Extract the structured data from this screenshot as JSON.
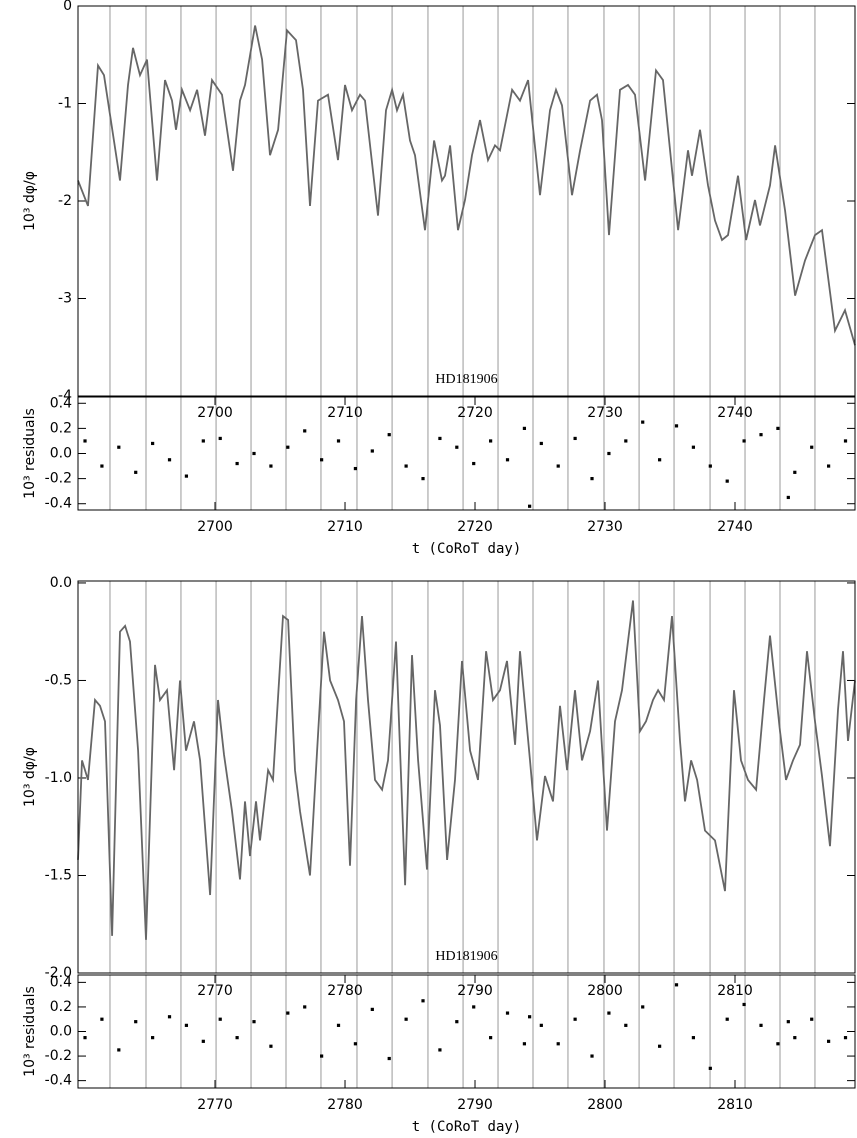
{
  "chart_data": [
    {
      "type": "line",
      "annotation": "HD181906",
      "ylabel": "10³ dφ/φ",
      "color": "#666666",
      "xlim": [
        2689.46,
        2749.23
      ],
      "ylim": [
        -4,
        0
      ],
      "yticks": [
        0,
        -1,
        -2,
        -3,
        -4
      ],
      "vlines": [
        2691.92,
        2694.69,
        2697.38,
        2700.08,
        2702.77,
        2705.46,
        2708.15,
        2710.92,
        2713.62,
        2716.38,
        2719.08,
        2721.77,
        2724.46,
        2727.15,
        2729.92,
        2732.62,
        2735.31,
        2738.08,
        2740.77,
        2743.46,
        2746.15
      ],
      "x": [
        2689.46,
        2690.23,
        2691.0,
        2691.46,
        2692.69,
        2693.31,
        2693.69,
        2694.23,
        2694.77,
        2695.54,
        2696.15,
        2696.69,
        2697.0,
        2697.46,
        2698.08,
        2698.62,
        2699.23,
        2699.77,
        2700.54,
        2701.38,
        2701.92,
        2702.31,
        2703.08,
        2703.62,
        2704.23,
        2704.85,
        2705.54,
        2706.23,
        2706.77,
        2707.31,
        2707.92,
        2708.69,
        2709.46,
        2710.0,
        2710.54,
        2711.15,
        2711.54,
        2712.54,
        2713.15,
        2713.62,
        2714.0,
        2714.46,
        2715.0,
        2715.38,
        2716.15,
        2716.85,
        2717.46,
        2717.69,
        2718.08,
        2718.69,
        2719.23,
        2719.77,
        2720.38,
        2721.0,
        2721.54,
        2721.92,
        2722.85,
        2723.46,
        2724.08,
        2725.0,
        2725.77,
        2726.23,
        2726.69,
        2727.46,
        2728.08,
        2728.85,
        2729.38,
        2729.77,
        2730.31,
        2731.15,
        2731.77,
        2732.31,
        2733.08,
        2733.92,
        2734.46,
        2735.62,
        2736.38,
        2736.69,
        2737.31,
        2737.92,
        2738.46,
        2739.0,
        2739.46,
        2740.23,
        2740.85,
        2741.54,
        2741.92,
        2742.69,
        2743.08,
        2743.85,
        2744.62,
        2745.38,
        2746.15,
        2746.69,
        2747.69,
        2748.46,
        2749.23
      ],
      "values": [
        -1.79,
        -2.05,
        -0.61,
        -0.71,
        -1.79,
        -0.81,
        -0.43,
        -0.71,
        -0.55,
        -1.79,
        -0.76,
        -0.97,
        -1.27,
        -0.86,
        -1.07,
        -0.86,
        -1.33,
        -0.76,
        -0.91,
        -1.69,
        -0.97,
        -0.81,
        -0.2,
        -0.55,
        -1.53,
        -1.27,
        -0.25,
        -0.35,
        -0.86,
        -2.05,
        -0.97,
        -0.91,
        -1.58,
        -0.81,
        -1.07,
        -0.91,
        -0.97,
        -2.15,
        -1.07,
        -0.86,
        -1.07,
        -0.91,
        -1.38,
        -1.53,
        -2.3,
        -1.38,
        -1.79,
        -1.74,
        -1.43,
        -2.3,
        -1.99,
        -1.53,
        -1.17,
        -1.58,
        -1.43,
        -1.48,
        -0.86,
        -0.97,
        -0.76,
        -1.94,
        -1.07,
        -0.86,
        -1.02,
        -1.94,
        -1.48,
        -0.97,
        -0.91,
        -1.17,
        -2.35,
        -0.86,
        -0.81,
        -0.91,
        -1.79,
        -0.66,
        -0.76,
        -2.3,
        -1.48,
        -1.74,
        -1.27,
        -1.84,
        -2.2,
        -2.4,
        -2.35,
        -1.74,
        -2.4,
        -1.99,
        -2.25,
        -1.84,
        -1.43,
        -2.1,
        -2.97,
        -2.61,
        -2.35,
        -2.3,
        -3.33,
        -3.12,
        -3.48
      ]
    },
    {
      "type": "scatter",
      "ylabel": "10³ residuals",
      "xlabel": "t (CoRoT day)",
      "color": "#000000",
      "xlim": [
        2689.46,
        2749.23
      ],
      "ylim": [
        -0.45,
        0.45
      ],
      "xticks": [
        2700,
        2710,
        2720,
        2730,
        2740
      ],
      "yticks": [
        0.4,
        0.2,
        {
          "value": 0,
          "label": "0.0"
        },
        -0.2,
        -0.4
      ],
      "x": [
        2690,
        2691.3,
        2692.6,
        2693.9,
        2695.2,
        2696.5,
        2697.8,
        2699.1,
        2700.4,
        2701.7,
        2703,
        2704.3,
        2705.6,
        2706.9,
        2708.2,
        2709.5,
        2710.8,
        2712.1,
        2713.4,
        2714.7,
        2716,
        2717.3,
        2718.6,
        2719.9,
        2721.2,
        2722.5,
        2723.8,
        2724.2,
        2725.1,
        2726.4,
        2727.7,
        2729,
        2730.3,
        2731.6,
        2732.9,
        2734.2,
        2735.5,
        2736.8,
        2738.1,
        2739.4,
        2740.7,
        2742,
        2743.3,
        2744.1,
        2744.6,
        2745.9,
        2747.2,
        2748.5
      ],
      "values": [
        0.1,
        -0.1,
        0.05,
        -0.15,
        0.08,
        -0.05,
        -0.18,
        0.1,
        0.12,
        -0.08,
        0.0,
        -0.1,
        0.05,
        0.18,
        -0.05,
        0.1,
        -0.12,
        0.02,
        0.15,
        -0.1,
        -0.2,
        0.12,
        0.05,
        -0.08,
        0.1,
        -0.05,
        0.2,
        -0.42,
        0.08,
        -0.1,
        0.12,
        -0.2,
        0.0,
        0.1,
        0.25,
        -0.05,
        0.22,
        0.05,
        -0.1,
        -0.22,
        0.1,
        0.15,
        0.2,
        -0.35,
        -0.15,
        0.05,
        -0.1,
        0.1
      ]
    },
    {
      "type": "line",
      "annotation": "HD181906",
      "ylabel": "10³ dφ/φ",
      "color": "#666666",
      "xlim": [
        2759.46,
        2819.23
      ],
      "ylim": [
        -2.0,
        0.01
      ],
      "yticks": [
        {
          "value": 0,
          "label": "0.0"
        },
        -0.5,
        {
          "value": -1,
          "label": "-1.0"
        },
        -1.5,
        {
          "value": -2,
          "label": "-2.0"
        }
      ],
      "vlines": [
        2761.92,
        2764.69,
        2767.38,
        2770.08,
        2772.77,
        2775.46,
        2778.15,
        2780.92,
        2783.62,
        2786.38,
        2789.08,
        2791.77,
        2794.46,
        2797.15,
        2799.92,
        2802.62,
        2805.31,
        2808.08,
        2810.77,
        2813.46,
        2816.15
      ],
      "x": [
        2759.46,
        2759.77,
        2760.23,
        2760.77,
        2761.15,
        2761.54,
        2762.08,
        2762.69,
        2763.08,
        2763.46,
        2764.08,
        2764.69,
        2765.38,
        2765.77,
        2766.31,
        2766.85,
        2767.31,
        2767.77,
        2768.38,
        2768.85,
        2769.62,
        2770.23,
        2770.69,
        2771.31,
        2771.92,
        2772.31,
        2772.69,
        2773.15,
        2773.46,
        2774.08,
        2774.46,
        2775.23,
        2775.62,
        2776.15,
        2776.54,
        2777.31,
        2777.85,
        2778.38,
        2778.85,
        2779.46,
        2779.92,
        2780.38,
        2780.85,
        2781.31,
        2781.77,
        2782.31,
        2782.85,
        2783.31,
        2783.92,
        2784.62,
        2785.15,
        2785.62,
        2786.31,
        2786.92,
        2787.31,
        2787.85,
        2788.46,
        2789.0,
        2789.62,
        2790.23,
        2790.85,
        2791.38,
        2791.92,
        2792.46,
        2793.08,
        2793.46,
        2794.23,
        2794.77,
        2795.38,
        2796.0,
        2796.54,
        2797.08,
        2797.69,
        2798.23,
        2798.85,
        2799.46,
        2800.15,
        2800.77,
        2801.31,
        2802.15,
        2802.69,
        2803.15,
        2803.69,
        2804.08,
        2804.54,
        2805.15,
        2805.77,
        2806.15,
        2806.62,
        2807.08,
        2807.69,
        2808.46,
        2809.23,
        2809.92,
        2810.46,
        2811.0,
        2811.62,
        2812.23,
        2812.69,
        2813.46,
        2813.92,
        2814.46,
        2815.0,
        2815.54,
        2816.15,
        2816.69,
        2817.31,
        2817.92,
        2818.31,
        2818.69,
        2819.23
      ],
      "values": [
        -1.42,
        -0.91,
        -1.01,
        -0.6,
        -0.63,
        -0.71,
        -1.81,
        -0.25,
        -0.22,
        -0.3,
        -0.86,
        -1.83,
        -0.42,
        -0.6,
        -0.55,
        -0.96,
        -0.5,
        -0.86,
        -0.71,
        -0.91,
        -1.6,
        -0.6,
        -0.88,
        -1.17,
        -1.52,
        -1.12,
        -1.4,
        -1.12,
        -1.32,
        -0.96,
        -1.01,
        -0.17,
        -0.19,
        -0.96,
        -1.17,
        -1.5,
        -0.86,
        -0.25,
        -0.5,
        -0.6,
        -0.71,
        -1.45,
        -0.6,
        -0.17,
        -0.6,
        -1.01,
        -1.06,
        -0.91,
        -0.3,
        -1.55,
        -0.37,
        -0.91,
        -1.47,
        -0.55,
        -0.73,
        -1.42,
        -1.01,
        -0.4,
        -0.86,
        -1.01,
        -0.35,
        -0.6,
        -0.55,
        -0.4,
        -0.83,
        -0.35,
        -0.91,
        -1.32,
        -0.99,
        -1.12,
        -0.63,
        -0.96,
        -0.55,
        -0.91,
        -0.76,
        -0.5,
        -1.27,
        -0.71,
        -0.55,
        -0.09,
        -0.76,
        -0.71,
        -0.6,
        -0.55,
        -0.6,
        -0.17,
        -0.81,
        -1.12,
        -0.91,
        -1.01,
        -1.27,
        -1.32,
        -1.58,
        -0.55,
        -0.91,
        -1.01,
        -1.06,
        -0.6,
        -0.27,
        -0.76,
        -1.01,
        -0.91,
        -0.83,
        -0.35,
        -0.71,
        -0.99,
        -1.35,
        -0.65,
        -0.35,
        -0.81,
        -0.5
      ]
    },
    {
      "type": "scatter",
      "ylabel": "10³ residuals",
      "xlabel": "t (CoRoT day)",
      "color": "#000000",
      "xlim": [
        2759.46,
        2819.23
      ],
      "ylim": [
        -0.46,
        0.46
      ],
      "xticks": [
        2770,
        2780,
        2790,
        2800,
        2810
      ],
      "yticks": [
        0.4,
        0.2,
        {
          "value": 0,
          "label": "0.0"
        },
        -0.2,
        -0.4
      ],
      "x": [
        2760,
        2761.3,
        2762.6,
        2763.9,
        2765.2,
        2766.5,
        2767.8,
        2769.1,
        2770.4,
        2771.7,
        2773,
        2774.3,
        2775.6,
        2776.9,
        2778.2,
        2779.5,
        2780.8,
        2782.1,
        2783.4,
        2784.7,
        2786,
        2787.3,
        2788.6,
        2789.9,
        2791.2,
        2792.5,
        2793.8,
        2794.2,
        2795.1,
        2796.4,
        2797.7,
        2799,
        2800.3,
        2801.6,
        2802.9,
        2804.2,
        2805.5,
        2806.8,
        2808.1,
        2809.4,
        2810.7,
        2812,
        2813.3,
        2814.1,
        2814.6,
        2815.9,
        2817.2,
        2818.5
      ],
      "values": [
        -0.05,
        0.1,
        -0.15,
        0.08,
        -0.05,
        0.12,
        0.05,
        -0.08,
        0.1,
        -0.05,
        0.08,
        -0.12,
        0.15,
        0.2,
        -0.2,
        0.05,
        -0.1,
        0.18,
        -0.22,
        0.1,
        0.25,
        -0.15,
        0.08,
        0.2,
        -0.05,
        0.15,
        -0.1,
        0.12,
        0.05,
        -0.1,
        0.1,
        -0.2,
        0.15,
        0.05,
        0.2,
        -0.12,
        0.38,
        -0.05,
        -0.3,
        0.1,
        0.22,
        0.05,
        -0.1,
        0.08,
        -0.05,
        0.1,
        -0.08,
        -0.05
      ]
    }
  ]
}
